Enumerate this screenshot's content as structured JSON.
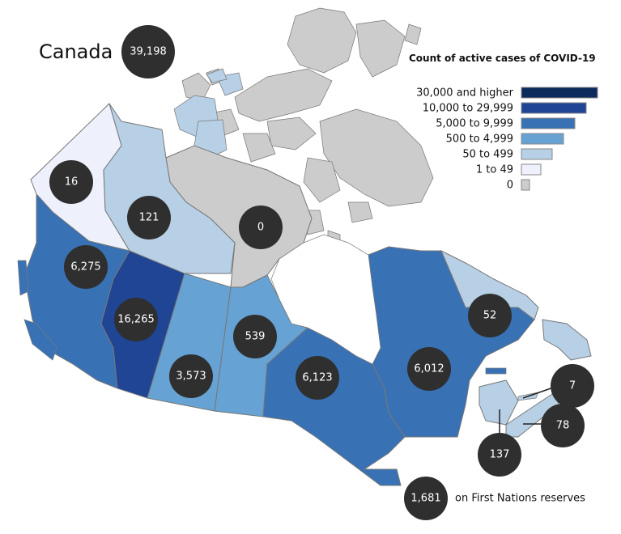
{
  "title": "Canada",
  "national_total": "39,198",
  "legend": {
    "title": "Count of active cases of COVID-19",
    "items": [
      {
        "label": "30,000 and higher",
        "color": "#0d2a5c"
      },
      {
        "label": "10,000 to 29,999",
        "color": "#1f4594"
      },
      {
        "label": "5,000 to 9,999",
        "color": "#3872b5"
      },
      {
        "label": "500 to 4,999",
        "color": "#66a2d3"
      },
      {
        "label": "50 to 499",
        "color": "#b7d0e6"
      },
      {
        "label": "1 to 49",
        "color": "#eef1fb"
      },
      {
        "label": "0",
        "color": "#cccccc"
      }
    ]
  },
  "regions": {
    "yukon": "16",
    "northwest_territories": "121",
    "nunavut": "0",
    "british_columbia": "6,275",
    "alberta": "16,265",
    "saskatchewan": "3,573",
    "manitoba": "539",
    "ontario": "6,123",
    "quebec": "6,012",
    "newfoundland_labrador": "52",
    "prince_edward_island": "7",
    "nova_scotia": "78",
    "new_brunswick": "137",
    "first_nations_reserves": "1,681"
  },
  "first_nations_label": "on First Nations reserves"
}
